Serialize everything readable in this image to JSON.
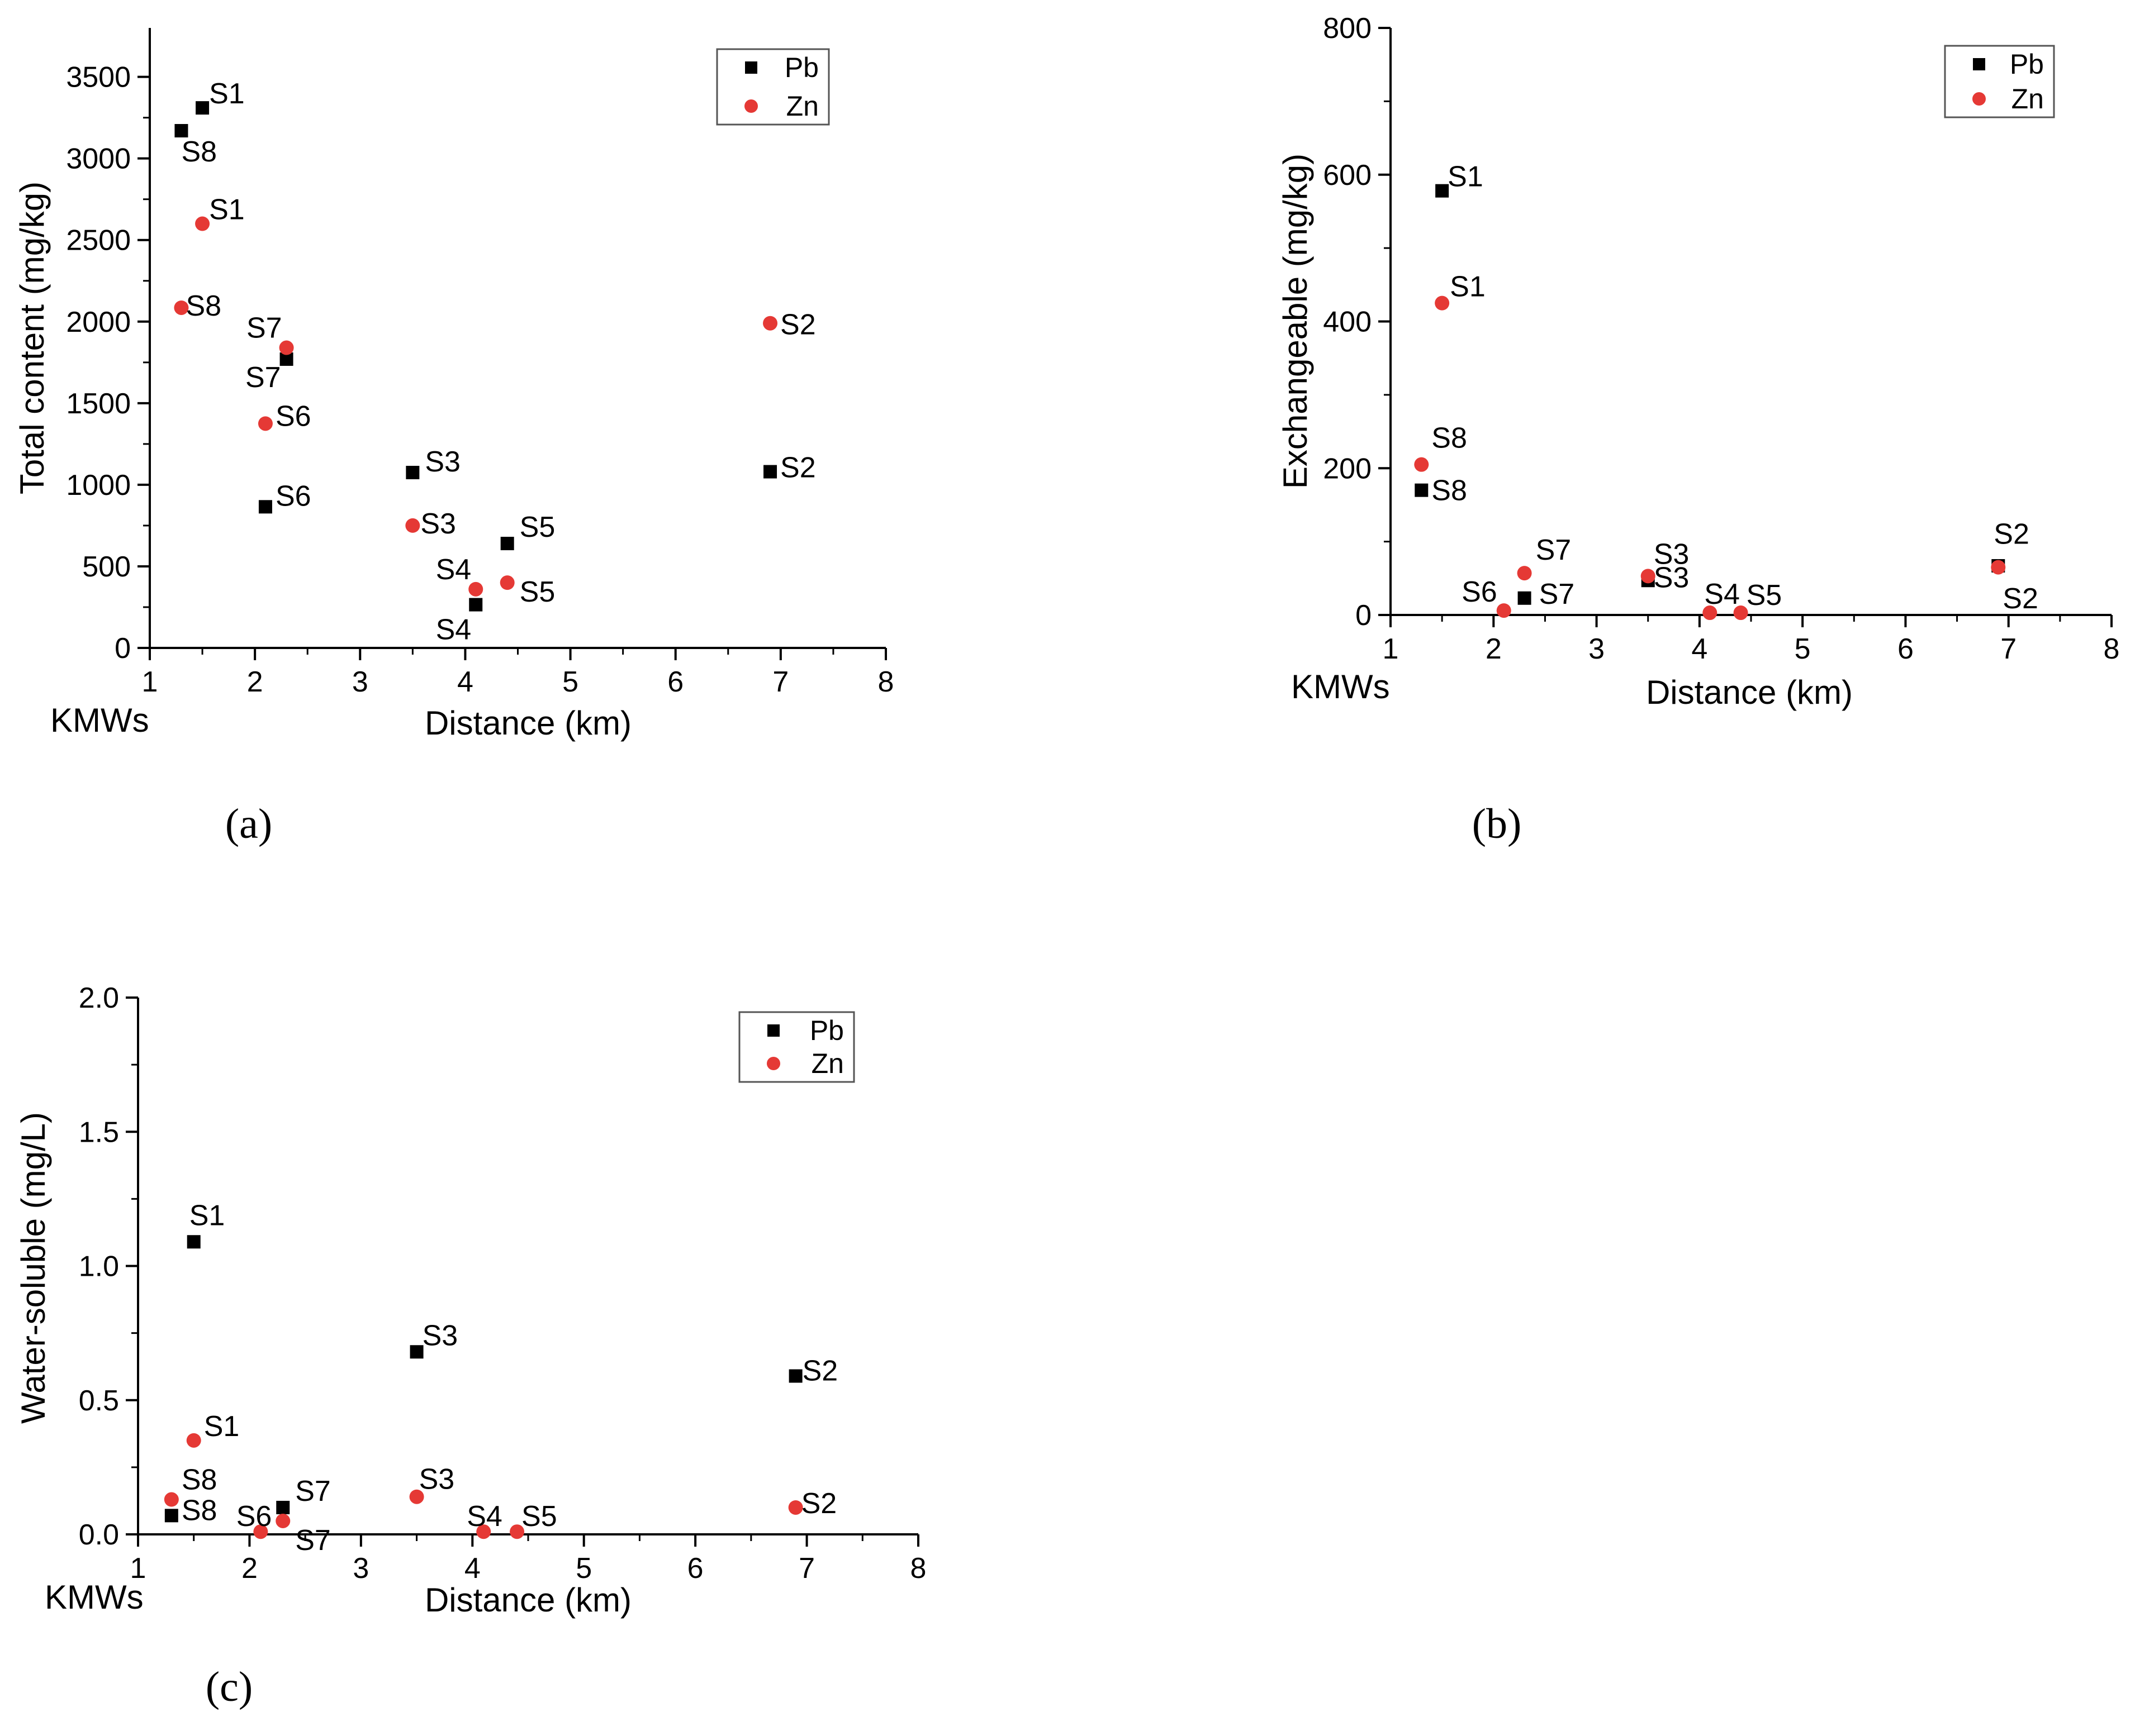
{
  "colors": {
    "pb": "#000000",
    "zn": "#e53935"
  },
  "chart_data": [
    {
      "type": "scatter",
      "panel": "(a)",
      "panel_letter": "a",
      "xlabel": "Distance (km)",
      "ylabel": "Total content (mg/kg)",
      "origin_label": "KMWs",
      "xlim": [
        1,
        8
      ],
      "ylim": [
        0,
        3800
      ],
      "xticks": [
        1,
        2,
        3,
        4,
        5,
        6,
        7,
        8
      ],
      "yticks": [
        0,
        500,
        1000,
        1500,
        2000,
        2500,
        3000,
        3500
      ],
      "ytick_labels": [
        "0",
        "500",
        "1000",
        "1500",
        "2000",
        "2500",
        "3000",
        "3500"
      ],
      "legend": [
        "Pb",
        "Zn"
      ],
      "series": [
        {
          "name": "Pb",
          "points": [
            {
              "label": "S1",
              "x": 1.5,
              "y": 3310
            },
            {
              "label": "S8",
              "x": 1.3,
              "y": 3170
            },
            {
              "label": "S7",
              "x": 2.3,
              "y": 1770
            },
            {
              "label": "S6",
              "x": 2.1,
              "y": 865
            },
            {
              "label": "S3",
              "x": 3.5,
              "y": 1075
            },
            {
              "label": "S4",
              "x": 4.1,
              "y": 265
            },
            {
              "label": "S5",
              "x": 4.4,
              "y": 640
            },
            {
              "label": "S2",
              "x": 6.9,
              "y": 1080
            }
          ]
        },
        {
          "name": "Zn",
          "points": [
            {
              "label": "S1",
              "x": 1.5,
              "y": 2600
            },
            {
              "label": "S8",
              "x": 1.3,
              "y": 2085
            },
            {
              "label": "S7",
              "x": 2.3,
              "y": 1840
            },
            {
              "label": "S6",
              "x": 2.1,
              "y": 1375
            },
            {
              "label": "S3",
              "x": 3.5,
              "y": 750
            },
            {
              "label": "S4",
              "x": 4.1,
              "y": 360
            },
            {
              "label": "S5",
              "x": 4.4,
              "y": 400
            },
            {
              "label": "S2",
              "x": 6.9,
              "y": 1990
            }
          ]
        }
      ]
    },
    {
      "type": "scatter",
      "panel": "(b)",
      "panel_letter": "b",
      "xlabel": "Distance (km)",
      "ylabel": "Exchangeable (mg/kg)",
      "origin_label": "KMWs",
      "xlim": [
        1,
        8
      ],
      "ylim": [
        0,
        800
      ],
      "xticks": [
        1,
        2,
        3,
        4,
        5,
        6,
        7,
        8
      ],
      "yticks": [
        0,
        200,
        400,
        600,
        800
      ],
      "ytick_labels": [
        "0",
        "200",
        "400",
        "600",
        "800"
      ],
      "legend": [
        "Pb",
        "Zn"
      ],
      "series": [
        {
          "name": "Pb",
          "points": [
            {
              "label": "S1",
              "x": 1.5,
              "y": 578
            },
            {
              "label": "S8",
              "x": 1.3,
              "y": 170
            },
            {
              "label": "S7",
              "x": 2.3,
              "y": 23
            },
            {
              "label": "S3",
              "x": 3.5,
              "y": 47
            },
            {
              "label": "S2",
              "x": 6.9,
              "y": 67
            }
          ]
        },
        {
          "name": "Zn",
          "points": [
            {
              "label": "S1",
              "x": 1.5,
              "y": 425
            },
            {
              "label": "S8",
              "x": 1.3,
              "y": 205
            },
            {
              "label": "S7",
              "x": 2.3,
              "y": 57
            },
            {
              "label": "S6",
              "x": 2.1,
              "y": 6
            },
            {
              "label": "S3",
              "x": 3.5,
              "y": 53
            },
            {
              "label": "S4",
              "x": 4.1,
              "y": 3
            },
            {
              "label": "S5",
              "x": 4.4,
              "y": 3
            },
            {
              "label": "S2",
              "x": 6.9,
              "y": 65
            }
          ]
        }
      ]
    },
    {
      "type": "scatter",
      "panel": "(c)",
      "panel_letter": "c",
      "xlabel": "Distance (km)",
      "ylabel": "Water-soluble (mg/L)",
      "origin_label": "KMWs",
      "xlim": [
        1,
        8
      ],
      "ylim": [
        0,
        2.0
      ],
      "xticks": [
        1,
        2,
        3,
        4,
        5,
        6,
        7,
        8
      ],
      "yticks": [
        0,
        0.5,
        1.0,
        1.5,
        2.0
      ],
      "ytick_labels": [
        "0.0",
        "0.5",
        "1.0",
        "1.5",
        "2.0"
      ],
      "legend": [
        "Pb",
        "Zn"
      ],
      "series": [
        {
          "name": "Pb",
          "points": [
            {
              "label": "S1",
              "x": 1.5,
              "y": 1.09
            },
            {
              "label": "S8",
              "x": 1.3,
              "y": 0.07
            },
            {
              "label": "S7",
              "x": 2.3,
              "y": 0.1
            },
            {
              "label": "S3",
              "x": 3.5,
              "y": 0.68
            },
            {
              "label": "S2",
              "x": 6.9,
              "y": 0.59
            }
          ]
        },
        {
          "name": "Zn",
          "points": [
            {
              "label": "S1",
              "x": 1.5,
              "y": 0.35
            },
            {
              "label": "S8",
              "x": 1.3,
              "y": 0.13
            },
            {
              "label": "S7",
              "x": 2.3,
              "y": 0.05
            },
            {
              "label": "S6",
              "x": 2.1,
              "y": 0.01
            },
            {
              "label": "S3",
              "x": 3.5,
              "y": 0.14
            },
            {
              "label": "S4",
              "x": 4.1,
              "y": 0.01
            },
            {
              "label": "S5",
              "x": 4.4,
              "y": 0.01
            },
            {
              "label": "S2",
              "x": 6.9,
              "y": 0.1
            }
          ]
        }
      ]
    }
  ]
}
